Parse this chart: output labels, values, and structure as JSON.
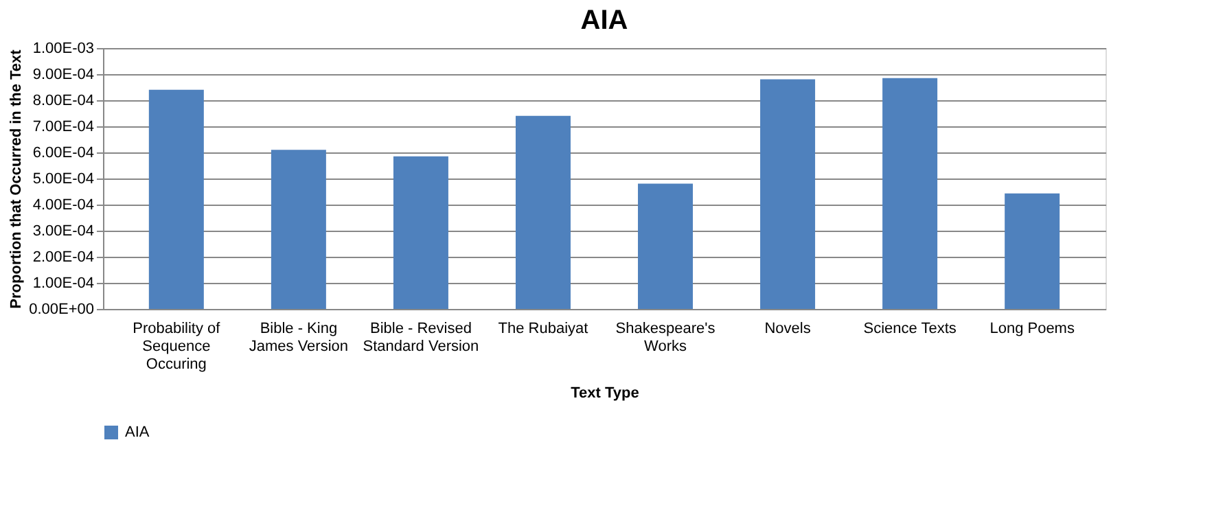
{
  "chart_data": {
    "type": "bar",
    "title": "AIA",
    "xlabel": "Text Type",
    "ylabel": "Proportion that Occurred in the Text",
    "categories": [
      "Probability of Sequence Occuring",
      "Bible - King James Version",
      "Bible - Revised Standard Version",
      "The Rubaiyat",
      "Shakespeare's Works",
      "Novels",
      "Science Texts",
      "Long Poems"
    ],
    "series": [
      {
        "name": "AIA",
        "color": "#4f81bd",
        "values": [
          0.00084,
          0.00061,
          0.000585,
          0.00074,
          0.00048,
          0.00088,
          0.000885,
          0.000443
        ]
      }
    ],
    "ylim": [
      0,
      0.001
    ],
    "yticks": [
      {
        "value": 0,
        "label": "0.00E+00"
      },
      {
        "value": 0.0001,
        "label": "1.00E-04"
      },
      {
        "value": 0.0002,
        "label": "2.00E-04"
      },
      {
        "value": 0.0003,
        "label": "3.00E-04"
      },
      {
        "value": 0.0004,
        "label": "4.00E-04"
      },
      {
        "value": 0.0005,
        "label": "5.00E-04"
      },
      {
        "value": 0.0006,
        "label": "6.00E-04"
      },
      {
        "value": 0.0007,
        "label": "7.00E-04"
      },
      {
        "value": 0.0008,
        "label": "8.00E-04"
      },
      {
        "value": 0.0009,
        "label": "9.00E-04"
      },
      {
        "value": 0.001,
        "label": "1.00E-03"
      }
    ],
    "grid": "y",
    "legend": "bottom"
  }
}
